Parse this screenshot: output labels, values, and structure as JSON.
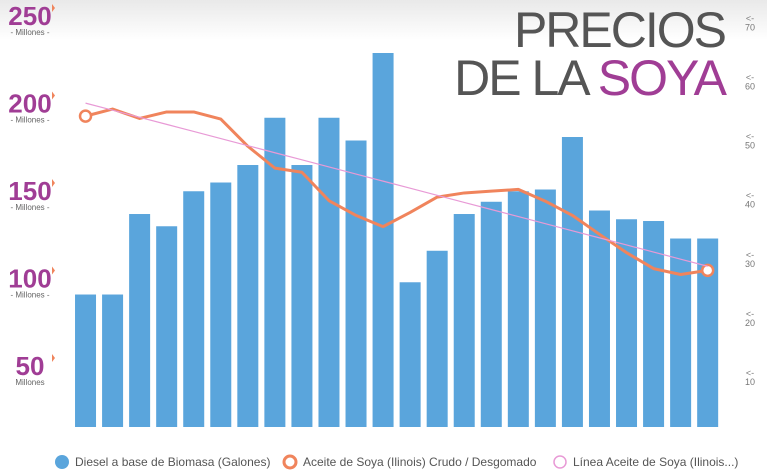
{
  "chart_data": {
    "type": "bar_line",
    "title_lines": [
      "PRECIOS",
      "DE LA",
      "SOYA"
    ],
    "categories": [
      null,
      null,
      null,
      null,
      null,
      null,
      null,
      null,
      null,
      null,
      null,
      null,
      null,
      null,
      null,
      null,
      null,
      null,
      null,
      null,
      null,
      null,
      null,
      null
    ],
    "series": [
      {
        "name": "Diesel a base de Biomasa (Galones)",
        "color": "#5aa5dc",
        "kind": "bar",
        "values": [
          92,
          92,
          138,
          131,
          151,
          156,
          166,
          193,
          166,
          193,
          180,
          230,
          99,
          117,
          138,
          145,
          151,
          152,
          182,
          140,
          135,
          134,
          124,
          124
        ]
      },
      {
        "name": "Aceite de Soya (Ilinois) Crudo / Desgomado",
        "color": "#f0845c",
        "kind": "line",
        "axis": "y2",
        "values": [
          55.1,
          56.3,
          54.7,
          55.8,
          55.8,
          54.6,
          50,
          46.3,
          45.6,
          40.8,
          38.3,
          36.4,
          38.8,
          41.4,
          42.1,
          42.4,
          42.7,
          40.7,
          38.3,
          35.1,
          32,
          29.3,
          28.3,
          29
        ]
      },
      {
        "name": "Línea Aceite de Soya (Ilinois...)",
        "color": "#e89ad6",
        "kind": "trend",
        "axis": "y2",
        "values": [
          57.3,
          56.1,
          54.9,
          53.7,
          52.5,
          51.3,
          50.1,
          48.9,
          47.7,
          46.5,
          45.3,
          44.1,
          42.9,
          41.7,
          40.5,
          39.3,
          38.1,
          36.9,
          35.7,
          34.5,
          33.3,
          32.1,
          30.9,
          29.7
        ]
      }
    ],
    "ylim": [
      16.3,
      250
    ],
    "yticks": [
      250,
      200,
      150,
      100,
      50
    ],
    "ytick_sublabels": [
      "- Millones -",
      "- Millones -",
      "- Millones -",
      "- Millones -",
      "Millones"
    ],
    "y2lim": [
      2.5,
      71.7
    ],
    "y2ticks": [
      70,
      60,
      50,
      40,
      30,
      20,
      10
    ],
    "y2tick_prefix": "<-",
    "legend": "bottom"
  }
}
